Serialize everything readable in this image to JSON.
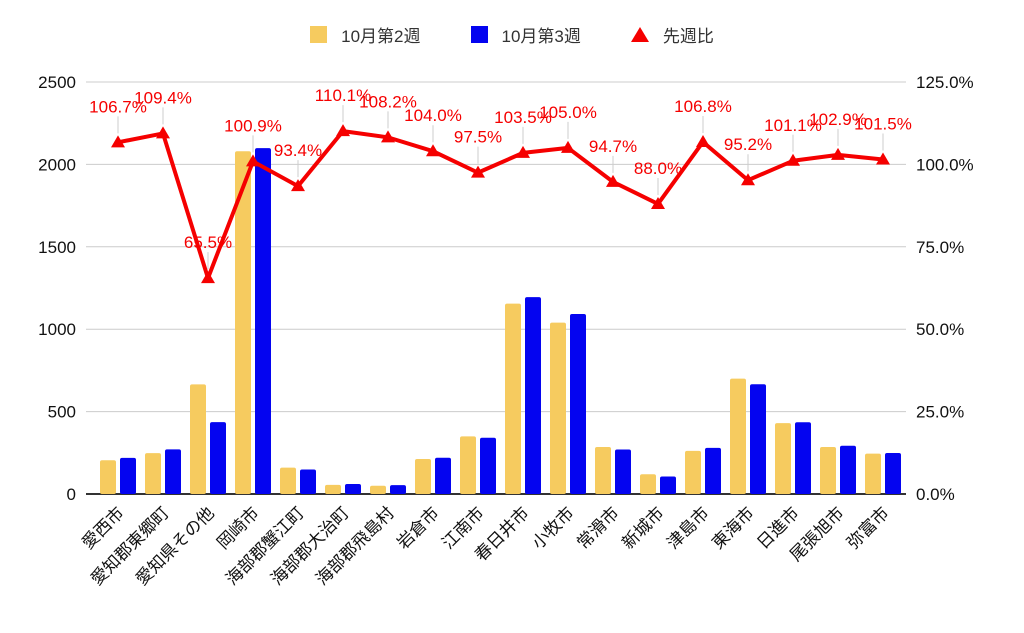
{
  "chart_data": {
    "type": "combo",
    "title": "",
    "categories": [
      "愛西市",
      "愛知郡東郷町",
      "愛知県その他",
      "岡崎市",
      "海部郡蟹江町",
      "海部郡大治町",
      "海部郡飛島村",
      "岩倉市",
      "江南市",
      "春日井市",
      "小牧市",
      "常滑市",
      "新城市",
      "津島市",
      "東海市",
      "日進市",
      "尾張旭市",
      "弥富市"
    ],
    "series": [
      {
        "name": "10月第2週",
        "type": "bar",
        "axis": "left",
        "color": "#F6CB5F",
        "values": [
          205,
          248,
          665,
          2080,
          160,
          55,
          50,
          212,
          350,
          1155,
          1040,
          285,
          120,
          262,
          700,
          430,
          285,
          245
        ]
      },
      {
        "name": "10月第3週",
        "type": "bar",
        "axis": "left",
        "color": "#0404F0",
        "values": [
          219,
          271,
          436,
          2099,
          149,
          61,
          54,
          220,
          341,
          1195,
          1092,
          270,
          106,
          280,
          666,
          435,
          293,
          249
        ]
      },
      {
        "name": "先週比",
        "type": "line",
        "axis": "right",
        "color": "#F50000",
        "values": [
          106.7,
          109.4,
          65.5,
          100.9,
          93.4,
          110.1,
          108.2,
          104.0,
          97.5,
          103.5,
          105.0,
          94.7,
          88.0,
          106.8,
          95.2,
          101.1,
          102.9,
          101.5
        ],
        "point_labels": [
          "106.7%",
          "109.4%",
          "65.5%",
          "100.9%",
          "93.4%",
          "110.1%",
          "108.2%",
          "104.0%",
          "97.5%",
          "103.5%",
          "105.0%",
          "94.7%",
          "88.0%",
          "106.8%",
          "95.2%",
          "101.1%",
          "102.9%",
          "101.5%"
        ]
      }
    ],
    "left_axis": {
      "min": 0,
      "max": 2500,
      "tick_values": [
        0,
        500,
        1000,
        1500,
        2000,
        2500
      ],
      "tick_labels": [
        "0",
        "500",
        "1000",
        "1500",
        "2000",
        "2500"
      ]
    },
    "right_axis": {
      "min": 0,
      "max": 125,
      "tick_values": [
        0,
        25,
        50,
        75,
        100,
        125
      ],
      "tick_labels": [
        "0.0%",
        "25.0%",
        "50.0%",
        "75.0%",
        "100.0%",
        "125.0%"
      ]
    },
    "grid": true,
    "legend_position": "top",
    "annotation_color": "#F50000",
    "axis_text_color": "#111111",
    "gridline_color": "#cccccc",
    "baseline_color": "#333333"
  }
}
